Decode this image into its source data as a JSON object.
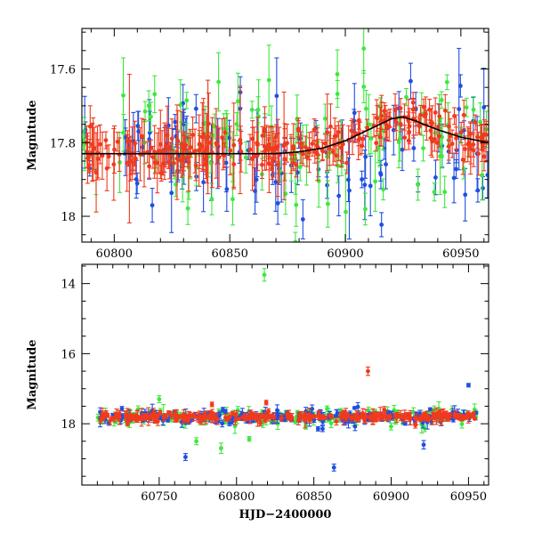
{
  "colors": {
    "blue": "#1f4fe0",
    "green": "#3ee83e",
    "red": "#f03a1e",
    "model": "#000000"
  },
  "chart_data": [
    {
      "type": "scatter",
      "panel": "top",
      "xlabel": "",
      "ylabel": "Magnitude",
      "xlim": [
        60786,
        60962
      ],
      "ylim": [
        18.07,
        17.49
      ],
      "x_inverted": false,
      "y_inverted": true,
      "x_major_ticks": [
        60800,
        60850,
        60900,
        60950
      ],
      "x_tick_labels": [
        "60800",
        "60850",
        "60900",
        "60950"
      ],
      "y_major_ticks": [
        17.6,
        17.8,
        18.0
      ],
      "y_tick_labels": [
        "17.6",
        "17.8",
        "18"
      ],
      "x_minor_step": 10,
      "y_minor_step": 0.05,
      "series": [
        {
          "name": "blue",
          "color": "blue",
          "description": "scattered photometry, mean ~17.82"
        },
        {
          "name": "green",
          "color": "green",
          "description": "scattered photometry, mean ~17.80"
        },
        {
          "name": "red",
          "color": "red",
          "description": "dense photometry, mean ~17.82, brightening to ~17.73 near 60925"
        }
      ],
      "model": {
        "name": "model curve",
        "x": [
          60786,
          60870,
          60880,
          60890,
          60900,
          60910,
          60920,
          60925,
          60930,
          60940,
          60950,
          60962
        ],
        "y": [
          17.83,
          17.83,
          17.825,
          17.815,
          17.795,
          17.765,
          17.735,
          17.73,
          17.74,
          17.765,
          17.785,
          17.8
        ]
      }
    },
    {
      "type": "scatter",
      "panel": "bottom",
      "xlabel": "HJD−2400000",
      "ylabel": "Magnitude",
      "xlim": [
        60700,
        60963
      ],
      "ylim": [
        19.75,
        13.45
      ],
      "y_inverted": true,
      "x_major_ticks": [
        60750,
        60800,
        60850,
        60900,
        60950
      ],
      "x_tick_labels": [
        "60750",
        "60800",
        "60850",
        "60900",
        "60950"
      ],
      "y_major_ticks": [
        14,
        16,
        18
      ],
      "y_tick_labels": [
        "14",
        "16",
        "18"
      ],
      "x_minor_step": 10,
      "y_minor_step": 0.5,
      "series": [
        {
          "name": "blue",
          "color": "blue",
          "description": "dense band near 17.8"
        },
        {
          "name": "green",
          "color": "green",
          "description": "dense band near 17.8 with outliers"
        },
        {
          "name": "red",
          "color": "red",
          "description": "densest band near 17.8"
        }
      ],
      "highlights": [
        {
          "series": "green",
          "x": 60818,
          "y": 13.75,
          "err": 0.18
        },
        {
          "series": "red",
          "x": 60885,
          "y": 16.5,
          "err": 0.12
        },
        {
          "series": "blue",
          "x": 60950,
          "y": 16.9,
          "err": 0.05
        },
        {
          "series": "blue",
          "x": 60767,
          "y": 18.95,
          "err": 0.1
        },
        {
          "series": "blue",
          "x": 60863,
          "y": 19.25,
          "err": 0.1
        },
        {
          "series": "green",
          "x": 60774,
          "y": 18.5,
          "err": 0.1
        },
        {
          "series": "green",
          "x": 60750,
          "y": 17.3,
          "err": 0.1
        },
        {
          "series": "green",
          "x": 60790,
          "y": 18.7,
          "err": 0.15
        },
        {
          "series": "blue",
          "x": 60921,
          "y": 18.6,
          "err": 0.12
        }
      ]
    }
  ]
}
